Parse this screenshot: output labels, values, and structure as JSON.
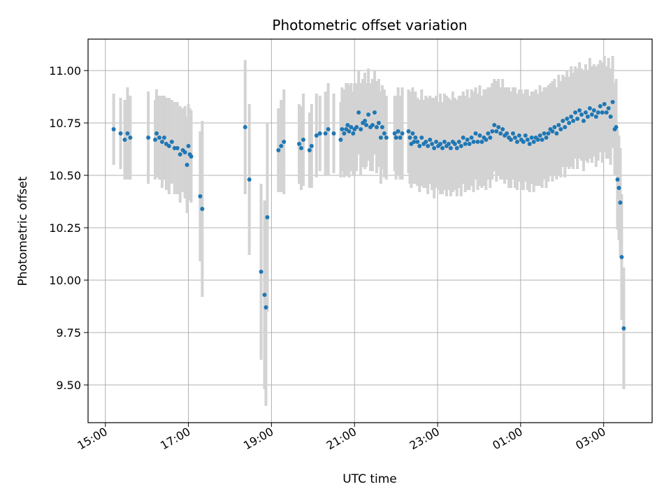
{
  "chart_data": {
    "type": "scatter",
    "title": "Photometric offset variation",
    "xlabel": "UTC time",
    "ylabel": "Photometric offset",
    "x_unit": "UTC time of day, axis spans 15:00 to 03:00 of the following day",
    "xlim": [
      "14:35",
      "04:10"
    ],
    "ylim": [
      9.32,
      11.15
    ],
    "x_ticks": [
      "15:00",
      "17:00",
      "19:00",
      "21:00",
      "23:00",
      "01:00",
      "03:00"
    ],
    "y_ticks": [
      "9.50",
      "9.75",
      "10.00",
      "10.25",
      "10.50",
      "10.75",
      "11.00"
    ],
    "y_tick_values": [
      9.5,
      9.75,
      10.0,
      10.25,
      10.5,
      10.75,
      11.0
    ],
    "grid": true,
    "colors": {
      "point": "#1f77b4",
      "errorbar": "#d3d3d3",
      "grid": "#b0b0b0"
    },
    "series": [
      {
        "error_bars": true,
        "points": [
          {
            "x": "15:12",
            "y": 10.72,
            "err": 0.17
          },
          {
            "x": "15:22",
            "y": 10.7,
            "err": 0.17
          },
          {
            "x": "15:28",
            "y": 10.67,
            "err": 0.19
          },
          {
            "x": "15:32",
            "y": 10.7,
            "err": 0.22
          },
          {
            "x": "15:36",
            "y": 10.68,
            "err": 0.2
          },
          {
            "x": "16:02",
            "y": 10.68,
            "err": 0.22
          },
          {
            "x": "16:12",
            "y": 10.67,
            "err": 0.19
          },
          {
            "x": "16:14",
            "y": 10.7,
            "err": 0.21
          },
          {
            "x": "16:18",
            "y": 10.68,
            "err": 0.2
          },
          {
            "x": "16:22",
            "y": 10.66,
            "err": 0.22
          },
          {
            "x": "16:25",
            "y": 10.68,
            "err": 0.2
          },
          {
            "x": "16:28",
            "y": 10.65,
            "err": 0.22
          },
          {
            "x": "16:32",
            "y": 10.64,
            "err": 0.23
          },
          {
            "x": "16:36",
            "y": 10.66,
            "err": 0.2
          },
          {
            "x": "16:40",
            "y": 10.63,
            "err": 0.22
          },
          {
            "x": "16:44",
            "y": 10.63,
            "err": 0.22
          },
          {
            "x": "16:48",
            "y": 10.6,
            "err": 0.23
          },
          {
            "x": "16:52",
            "y": 10.62,
            "err": 0.2
          },
          {
            "x": "16:55",
            "y": 10.61,
            "err": 0.22
          },
          {
            "x": "16:58",
            "y": 10.55,
            "err": 0.23
          },
          {
            "x": "17:00",
            "y": 10.64,
            "err": 0.2
          },
          {
            "x": "17:02",
            "y": 10.6,
            "err": 0.22
          },
          {
            "x": "17:04",
            "y": 10.59,
            "err": 0.22
          },
          {
            "x": "17:17",
            "y": 10.4,
            "err": 0.31
          },
          {
            "x": "17:20",
            "y": 10.34,
            "err": 0.42
          },
          {
            "x": "18:22",
            "y": 10.73,
            "err": 0.32
          },
          {
            "x": "18:28",
            "y": 10.48,
            "err": 0.36
          },
          {
            "x": "18:45",
            "y": 10.04,
            "err": 0.42
          },
          {
            "x": "18:50",
            "y": 9.93,
            "err": 0.45
          },
          {
            "x": "18:52",
            "y": 9.87,
            "err": 0.47
          },
          {
            "x": "18:54",
            "y": 10.3,
            "err": 0.45
          },
          {
            "x": "19:10",
            "y": 10.62,
            "err": 0.2
          },
          {
            "x": "19:14",
            "y": 10.64,
            "err": 0.22
          },
          {
            "x": "19:18",
            "y": 10.66,
            "err": 0.25
          },
          {
            "x": "19:40",
            "y": 10.65,
            "err": 0.19
          },
          {
            "x": "19:43",
            "y": 10.63,
            "err": 0.2
          },
          {
            "x": "19:46",
            "y": 10.67,
            "err": 0.22
          },
          {
            "x": "19:55",
            "y": 10.62,
            "err": 0.18
          },
          {
            "x": "19:58",
            "y": 10.64,
            "err": 0.2
          },
          {
            "x": "20:05",
            "y": 10.69,
            "err": 0.2
          },
          {
            "x": "20:10",
            "y": 10.7,
            "err": 0.18
          },
          {
            "x": "20:18",
            "y": 10.7,
            "err": 0.2
          },
          {
            "x": "20:22",
            "y": 10.72,
            "err": 0.22
          },
          {
            "x": "20:30",
            "y": 10.7,
            "err": 0.19
          },
          {
            "x": "20:40",
            "y": 10.67,
            "err": 0.18
          },
          {
            "x": "20:42",
            "y": 10.72,
            "err": 0.2
          },
          {
            "x": "20:45",
            "y": 10.7,
            "err": 0.21
          },
          {
            "x": "20:48",
            "y": 10.72,
            "err": 0.22
          },
          {
            "x": "20:50",
            "y": 10.74,
            "err": 0.2
          },
          {
            "x": "20:52",
            "y": 10.71,
            "err": 0.22
          },
          {
            "x": "20:55",
            "y": 10.73,
            "err": 0.21
          },
          {
            "x": "20:58",
            "y": 10.7,
            "err": 0.2
          },
          {
            "x": "21:00",
            "y": 10.72,
            "err": 0.22
          },
          {
            "x": "21:03",
            "y": 10.73,
            "err": 0.21
          },
          {
            "x": "21:06",
            "y": 10.8,
            "err": 0.2
          },
          {
            "x": "21:09",
            "y": 10.72,
            "err": 0.22
          },
          {
            "x": "21:12",
            "y": 10.75,
            "err": 0.21
          },
          {
            "x": "21:15",
            "y": 10.76,
            "err": 0.23
          },
          {
            "x": "21:17",
            "y": 10.74,
            "err": 0.2
          },
          {
            "x": "21:20",
            "y": 10.79,
            "err": 0.22
          },
          {
            "x": "21:23",
            "y": 10.73,
            "err": 0.21
          },
          {
            "x": "21:26",
            "y": 10.74,
            "err": 0.22
          },
          {
            "x": "21:29",
            "y": 10.8,
            "err": 0.2
          },
          {
            "x": "21:32",
            "y": 10.73,
            "err": 0.22
          },
          {
            "x": "21:35",
            "y": 10.75,
            "err": 0.21
          },
          {
            "x": "21:38",
            "y": 10.68,
            "err": 0.22
          },
          {
            "x": "21:40",
            "y": 10.73,
            "err": 0.2
          },
          {
            "x": "21:43",
            "y": 10.7,
            "err": 0.21
          },
          {
            "x": "21:46",
            "y": 10.68,
            "err": 0.2
          },
          {
            "x": "21:58",
            "y": 10.7,
            "err": 0.18
          },
          {
            "x": "22:00",
            "y": 10.68,
            "err": 0.2
          },
          {
            "x": "22:03",
            "y": 10.71,
            "err": 0.21
          },
          {
            "x": "22:06",
            "y": 10.68,
            "err": 0.2
          },
          {
            "x": "22:09",
            "y": 10.7,
            "err": 0.22
          },
          {
            "x": "22:18",
            "y": 10.71,
            "err": 0.2
          },
          {
            "x": "22:20",
            "y": 10.68,
            "err": 0.22
          },
          {
            "x": "22:22",
            "y": 10.65,
            "err": 0.21
          },
          {
            "x": "22:24",
            "y": 10.7,
            "err": 0.22
          },
          {
            "x": "22:26",
            "y": 10.66,
            "err": 0.2
          },
          {
            "x": "22:28",
            "y": 10.68,
            "err": 0.22
          },
          {
            "x": "22:31",
            "y": 10.66,
            "err": 0.21
          },
          {
            "x": "22:34",
            "y": 10.64,
            "err": 0.22
          },
          {
            "x": "22:37",
            "y": 10.68,
            "err": 0.23
          },
          {
            "x": "22:40",
            "y": 10.65,
            "err": 0.21
          },
          {
            "x": "22:43",
            "y": 10.66,
            "err": 0.22
          },
          {
            "x": "22:46",
            "y": 10.64,
            "err": 0.23
          },
          {
            "x": "22:49",
            "y": 10.67,
            "err": 0.21
          },
          {
            "x": "22:52",
            "y": 10.65,
            "err": 0.22
          },
          {
            "x": "22:55",
            "y": 10.63,
            "err": 0.24
          },
          {
            "x": "22:58",
            "y": 10.66,
            "err": 0.22
          },
          {
            "x": "23:01",
            "y": 10.64,
            "err": 0.21
          },
          {
            "x": "23:04",
            "y": 10.65,
            "err": 0.24
          },
          {
            "x": "23:07",
            "y": 10.63,
            "err": 0.22
          },
          {
            "x": "23:10",
            "y": 10.66,
            "err": 0.23
          },
          {
            "x": "23:13",
            "y": 10.64,
            "err": 0.24
          },
          {
            "x": "23:16",
            "y": 10.65,
            "err": 0.22
          },
          {
            "x": "23:19",
            "y": 10.63,
            "err": 0.23
          },
          {
            "x": "23:22",
            "y": 10.66,
            "err": 0.24
          },
          {
            "x": "23:25",
            "y": 10.65,
            "err": 0.22
          },
          {
            "x": "23:28",
            "y": 10.63,
            "err": 0.23
          },
          {
            "x": "23:31",
            "y": 10.66,
            "err": 0.22
          },
          {
            "x": "23:34",
            "y": 10.64,
            "err": 0.24
          },
          {
            "x": "23:37",
            "y": 10.68,
            "err": 0.22
          },
          {
            "x": "23:40",
            "y": 10.65,
            "err": 0.23
          },
          {
            "x": "23:43",
            "y": 10.67,
            "err": 0.24
          },
          {
            "x": "23:46",
            "y": 10.65,
            "err": 0.22
          },
          {
            "x": "23:49",
            "y": 10.68,
            "err": 0.23
          },
          {
            "x": "23:52",
            "y": 10.66,
            "err": 0.24
          },
          {
            "x": "23:55",
            "y": 10.7,
            "err": 0.22
          },
          {
            "x": "23:58",
            "y": 10.66,
            "err": 0.23
          },
          {
            "x": "00:01",
            "y": 10.69,
            "err": 0.24
          },
          {
            "x": "00:04",
            "y": 10.66,
            "err": 0.22
          },
          {
            "x": "00:07",
            "y": 10.68,
            "err": 0.23
          },
          {
            "x": "00:10",
            "y": 10.67,
            "err": 0.24
          },
          {
            "x": "00:13",
            "y": 10.7,
            "err": 0.22
          },
          {
            "x": "00:16",
            "y": 10.68,
            "err": 0.24
          },
          {
            "x": "00:19",
            "y": 10.71,
            "err": 0.23
          },
          {
            "x": "00:22",
            "y": 10.74,
            "err": 0.22
          },
          {
            "x": "00:25",
            "y": 10.71,
            "err": 0.24
          },
          {
            "x": "00:28",
            "y": 10.73,
            "err": 0.23
          },
          {
            "x": "00:31",
            "y": 10.7,
            "err": 0.22
          },
          {
            "x": "00:34",
            "y": 10.72,
            "err": 0.24
          },
          {
            "x": "00:37",
            "y": 10.69,
            "err": 0.23
          },
          {
            "x": "00:40",
            "y": 10.7,
            "err": 0.22
          },
          {
            "x": "00:43",
            "y": 10.68,
            "err": 0.24
          },
          {
            "x": "00:46",
            "y": 10.67,
            "err": 0.23
          },
          {
            "x": "00:49",
            "y": 10.7,
            "err": 0.22
          },
          {
            "x": "00:52",
            "y": 10.68,
            "err": 0.24
          },
          {
            "x": "00:55",
            "y": 10.66,
            "err": 0.23
          },
          {
            "x": "00:58",
            "y": 10.69,
            "err": 0.22
          },
          {
            "x": "01:01",
            "y": 10.67,
            "err": 0.24
          },
          {
            "x": "01:04",
            "y": 10.66,
            "err": 0.23
          },
          {
            "x": "01:07",
            "y": 10.69,
            "err": 0.22
          },
          {
            "x": "01:10",
            "y": 10.67,
            "err": 0.24
          },
          {
            "x": "01:13",
            "y": 10.65,
            "err": 0.23
          },
          {
            "x": "01:16",
            "y": 10.68,
            "err": 0.22
          },
          {
            "x": "01:19",
            "y": 10.66,
            "err": 0.24
          },
          {
            "x": "01:22",
            "y": 10.68,
            "err": 0.23
          },
          {
            "x": "01:25",
            "y": 10.67,
            "err": 0.22
          },
          {
            "x": "01:28",
            "y": 10.69,
            "err": 0.24
          },
          {
            "x": "01:31",
            "y": 10.67,
            "err": 0.23
          },
          {
            "x": "01:34",
            "y": 10.7,
            "err": 0.22
          },
          {
            "x": "01:37",
            "y": 10.68,
            "err": 0.24
          },
          {
            "x": "01:40",
            "y": 10.7,
            "err": 0.23
          },
          {
            "x": "01:43",
            "y": 10.72,
            "err": 0.22
          },
          {
            "x": "01:46",
            "y": 10.71,
            "err": 0.24
          },
          {
            "x": "01:49",
            "y": 10.73,
            "err": 0.23
          },
          {
            "x": "01:52",
            "y": 10.7,
            "err": 0.22
          },
          {
            "x": "01:55",
            "y": 10.74,
            "err": 0.24
          },
          {
            "x": "01:58",
            "y": 10.72,
            "err": 0.23
          },
          {
            "x": "02:01",
            "y": 10.76,
            "err": 0.22
          },
          {
            "x": "02:04",
            "y": 10.73,
            "err": 0.24
          },
          {
            "x": "02:07",
            "y": 10.77,
            "err": 0.23
          },
          {
            "x": "02:10",
            "y": 10.75,
            "err": 0.22
          },
          {
            "x": "02:13",
            "y": 10.78,
            "err": 0.24
          },
          {
            "x": "02:16",
            "y": 10.76,
            "err": 0.23
          },
          {
            "x": "02:19",
            "y": 10.8,
            "err": 0.22
          },
          {
            "x": "02:22",
            "y": 10.77,
            "err": 0.24
          },
          {
            "x": "02:25",
            "y": 10.81,
            "err": 0.23
          },
          {
            "x": "02:28",
            "y": 10.79,
            "err": 0.22
          },
          {
            "x": "02:31",
            "y": 10.76,
            "err": 0.24
          },
          {
            "x": "02:34",
            "y": 10.8,
            "err": 0.23
          },
          {
            "x": "02:37",
            "y": 10.78,
            "err": 0.22
          },
          {
            "x": "02:40",
            "y": 10.82,
            "err": 0.24
          },
          {
            "x": "02:43",
            "y": 10.79,
            "err": 0.23
          },
          {
            "x": "02:46",
            "y": 10.81,
            "err": 0.22
          },
          {
            "x": "02:49",
            "y": 10.78,
            "err": 0.24
          },
          {
            "x": "02:52",
            "y": 10.8,
            "err": 0.23
          },
          {
            "x": "02:55",
            "y": 10.83,
            "err": 0.22
          },
          {
            "x": "02:58",
            "y": 10.8,
            "err": 0.24
          },
          {
            "x": "03:01",
            "y": 10.84,
            "err": 0.23
          },
          {
            "x": "03:04",
            "y": 10.8,
            "err": 0.22
          },
          {
            "x": "03:07",
            "y": 10.82,
            "err": 0.24
          },
          {
            "x": "03:10",
            "y": 10.78,
            "err": 0.23
          },
          {
            "x": "03:13",
            "y": 10.85,
            "err": 0.22
          },
          {
            "x": "03:16",
            "y": 10.72,
            "err": 0.22
          },
          {
            "x": "03:18",
            "y": 10.73,
            "err": 0.23
          },
          {
            "x": "03:20",
            "y": 10.48,
            "err": 0.24
          },
          {
            "x": "03:22",
            "y": 10.44,
            "err": 0.25
          },
          {
            "x": "03:24",
            "y": 10.37,
            "err": 0.26
          },
          {
            "x": "03:26",
            "y": 10.11,
            "err": 0.3
          },
          {
            "x": "03:29",
            "y": 9.77,
            "err": 0.29
          }
        ]
      }
    ]
  }
}
